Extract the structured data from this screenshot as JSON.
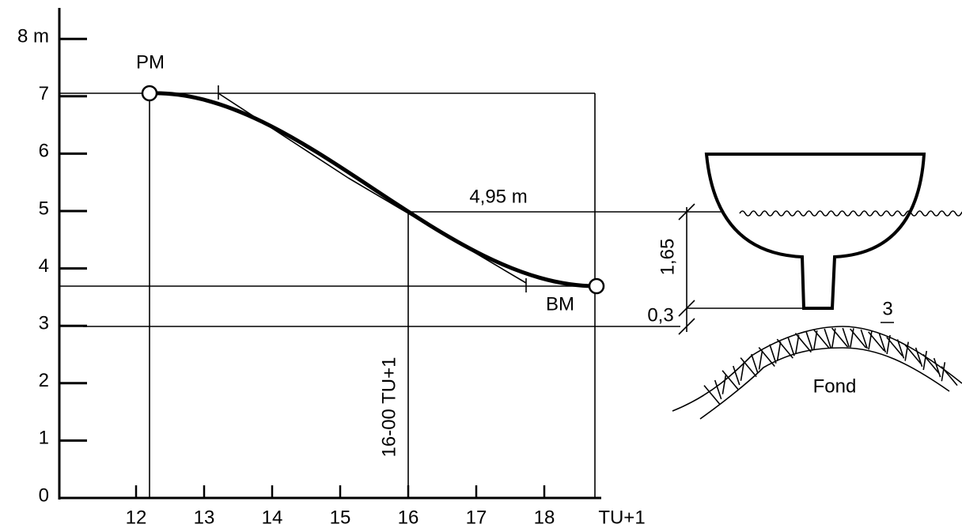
{
  "axis": {
    "y_labels": [
      "0",
      "1",
      "2",
      "3",
      "4",
      "5",
      "6",
      "7",
      "8 m"
    ],
    "x_labels": [
      "12",
      "13",
      "14",
      "15",
      "16",
      "17",
      "18"
    ],
    "x_unit": "TU+1"
  },
  "annotations": {
    "high_water": "PM",
    "low_water": "BM",
    "height": "4,95 m",
    "time": "16-00 TU+1",
    "draft": "1,65",
    "clearance": "0,3",
    "sounding": "3",
    "bottom": "Fond"
  }
}
